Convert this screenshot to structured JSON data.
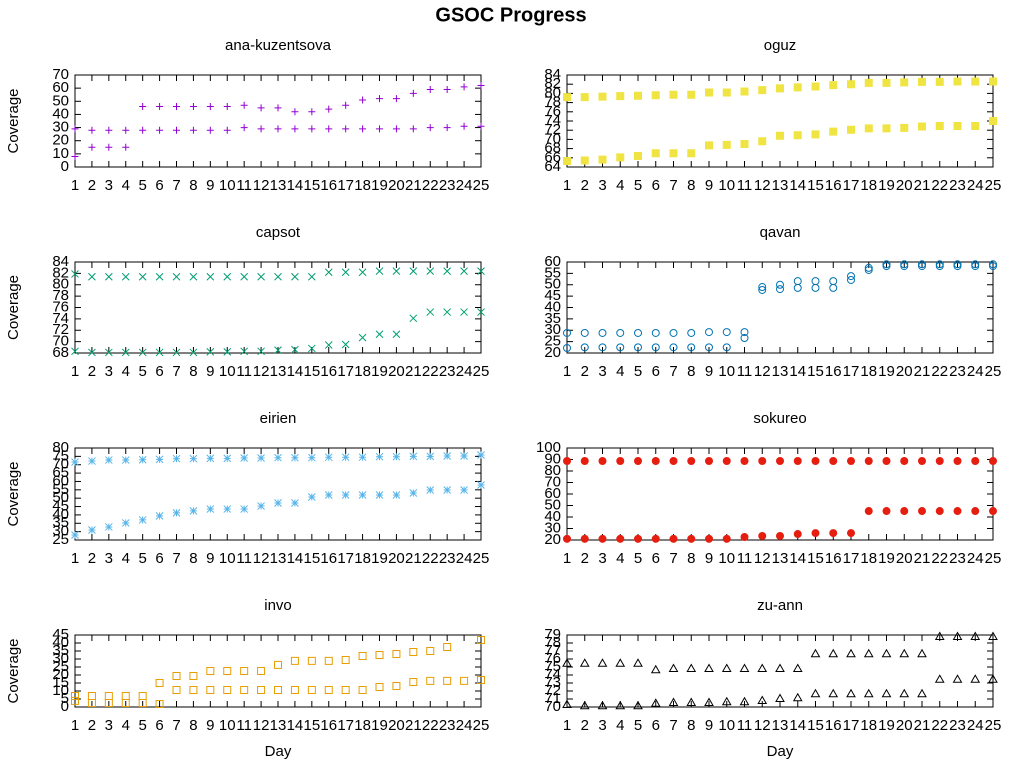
{
  "title": "GSOC Progress",
  "chart_data": [
    {
      "type": "scatter",
      "title": "ana-kuzentsova",
      "ylabel": "Coverage",
      "x": [
        1,
        2,
        3,
        4,
        5,
        6,
        7,
        8,
        9,
        10,
        11,
        12,
        13,
        14,
        15,
        16,
        17,
        18,
        19,
        20,
        21,
        22,
        23,
        24,
        25
      ],
      "xlim": [
        1,
        25
      ],
      "xticks": [
        1,
        2,
        3,
        4,
        5,
        6,
        7,
        8,
        9,
        10,
        11,
        12,
        13,
        14,
        15,
        16,
        17,
        18,
        19,
        20,
        21,
        22,
        23,
        24,
        25
      ],
      "ylim": [
        0,
        70
      ],
      "yticks": [
        0,
        10,
        20,
        30,
        40,
        50,
        60,
        70
      ],
      "series": [
        {
          "color": "#9400d3",
          "marker": "plus",
          "values": [
            29,
            28,
            28,
            28,
            46,
            46,
            46,
            46,
            46,
            46,
            47,
            45,
            45,
            42,
            42,
            44,
            47,
            51,
            52,
            52,
            56,
            59,
            59,
            61,
            62
          ]
        },
        {
          "color": "#9400d3",
          "marker": "plus",
          "values": [
            8,
            15,
            15,
            15,
            28,
            28,
            28,
            28,
            28,
            28,
            30,
            29,
            29,
            29,
            29,
            29,
            29,
            29,
            29,
            29,
            29,
            30,
            30,
            31,
            31
          ]
        }
      ]
    },
    {
      "type": "scatter",
      "title": "oguz",
      "x": [
        1,
        2,
        3,
        4,
        5,
        6,
        7,
        8,
        9,
        10,
        11,
        12,
        13,
        14,
        15,
        16,
        17,
        18,
        19,
        20,
        21,
        22,
        23,
        24,
        25
      ],
      "xlim": [
        1,
        25
      ],
      "xticks": [
        1,
        2,
        3,
        4,
        5,
        6,
        7,
        8,
        9,
        10,
        11,
        12,
        13,
        14,
        15,
        16,
        17,
        18,
        19,
        20,
        21,
        22,
        23,
        24,
        25
      ],
      "ylim": [
        64,
        84
      ],
      "yticks": [
        64,
        66,
        68,
        70,
        72,
        74,
        76,
        78,
        80,
        82,
        84
      ],
      "series": [
        {
          "color": "#f0e442",
          "marker": "square-filled",
          "values": [
            79.2,
            79.2,
            79.3,
            79.4,
            79.5,
            79.6,
            79.7,
            79.7,
            80.2,
            80.2,
            80.4,
            80.7,
            81.1,
            81.3,
            81.5,
            81.8,
            82,
            82.3,
            82.3,
            82.4,
            82.5,
            82.5,
            82.6,
            82.6,
            82.6
          ]
        },
        {
          "color": "#f0e442",
          "marker": "square-filled",
          "values": [
            65.3,
            65.4,
            65.6,
            66.1,
            66.4,
            67,
            67,
            67,
            68.7,
            68.8,
            69,
            69.6,
            70.8,
            70.9,
            71.1,
            71.7,
            72.1,
            72.4,
            72.4,
            72.5,
            72.8,
            72.9,
            72.9,
            72.9,
            74
          ]
        }
      ]
    },
    {
      "type": "scatter",
      "title": "capsot",
      "ylabel": "Coverage",
      "x": [
        1,
        2,
        3,
        4,
        5,
        6,
        7,
        8,
        9,
        10,
        11,
        12,
        13,
        14,
        15,
        16,
        17,
        18,
        19,
        20,
        21,
        22,
        23,
        24,
        25
      ],
      "xlim": [
        1,
        25
      ],
      "xticks": [
        1,
        2,
        3,
        4,
        5,
        6,
        7,
        8,
        9,
        10,
        11,
        12,
        13,
        14,
        15,
        16,
        17,
        18,
        19,
        20,
        21,
        22,
        23,
        24,
        25
      ],
      "ylim": [
        68,
        84
      ],
      "yticks": [
        68,
        70,
        72,
        74,
        76,
        78,
        80,
        82,
        84
      ],
      "series": [
        {
          "color": "#009e73",
          "marker": "cross",
          "values": [
            81.9,
            81.4,
            81.4,
            81.4,
            81.4,
            81.4,
            81.4,
            81.4,
            81.4,
            81.4,
            81.4,
            81.4,
            81.4,
            81.4,
            81.4,
            82.2,
            82.2,
            82.2,
            82.4,
            82.4,
            82.4,
            82.4,
            82.4,
            82.4,
            82.4
          ]
        },
        {
          "color": "#009e73",
          "marker": "cross",
          "values": [
            68.3,
            68.1,
            68.1,
            68.1,
            68.1,
            68.1,
            68.1,
            68.1,
            68.2,
            68.2,
            68.3,
            68.3,
            68.5,
            68.6,
            68.8,
            69.4,
            69.5,
            70.7,
            71.3,
            71.3,
            74.1,
            75.2,
            75.2,
            75.2,
            75.2
          ]
        }
      ]
    },
    {
      "type": "scatter",
      "title": "qavan",
      "x": [
        1,
        2,
        3,
        4,
        5,
        6,
        7,
        8,
        9,
        10,
        11,
        12,
        13,
        14,
        15,
        16,
        17,
        18,
        19,
        20,
        21,
        22,
        23,
        24,
        25
      ],
      "xlim": [
        1,
        25
      ],
      "xticks": [
        1,
        2,
        3,
        4,
        5,
        6,
        7,
        8,
        9,
        10,
        11,
        12,
        13,
        14,
        15,
        16,
        17,
        18,
        19,
        20,
        21,
        22,
        23,
        24,
        25
      ],
      "ylim": [
        20,
        60
      ],
      "yticks": [
        20,
        25,
        30,
        35,
        40,
        45,
        50,
        55,
        60
      ],
      "series": [
        {
          "color": "#0072b2",
          "marker": "circle-open",
          "values": [
            28.8,
            28.8,
            28.8,
            28.8,
            28.8,
            28.8,
            28.8,
            28.8,
            29.2,
            29.2,
            29.2,
            49,
            50,
            51.6,
            51.6,
            51.6,
            53.8,
            57.4,
            59,
            59,
            59,
            59,
            59,
            59,
            59
          ]
        },
        {
          "color": "#0072b2",
          "marker": "circle-open",
          "values": [
            22.2,
            22.5,
            22.5,
            22.5,
            22.5,
            22.5,
            22.5,
            22.5,
            22.5,
            22.5,
            26.6,
            47.7,
            48.1,
            48.6,
            48.6,
            48.6,
            52.1,
            56.5,
            58.2,
            58.2,
            58.2,
            58.2,
            58.2,
            58.2,
            58.2
          ]
        }
      ]
    },
    {
      "type": "scatter",
      "title": "eirien",
      "ylabel": "Coverage",
      "x": [
        1,
        2,
        3,
        4,
        5,
        6,
        7,
        8,
        9,
        10,
        11,
        12,
        13,
        14,
        15,
        16,
        17,
        18,
        19,
        20,
        21,
        22,
        23,
        24,
        25
      ],
      "xlim": [
        1,
        25
      ],
      "xticks": [
        1,
        2,
        3,
        4,
        5,
        6,
        7,
        8,
        9,
        10,
        11,
        12,
        13,
        14,
        15,
        16,
        17,
        18,
        19,
        20,
        21,
        22,
        23,
        24,
        25
      ],
      "ylim": [
        25,
        80
      ],
      "yticks": [
        25,
        30,
        35,
        40,
        45,
        50,
        55,
        60,
        65,
        70,
        75,
        80
      ],
      "series": [
        {
          "color": "#56b4e9",
          "marker": "asterisk",
          "values": [
            71.6,
            72.2,
            72.8,
            72.8,
            73,
            73.2,
            73.6,
            73.6,
            73.8,
            73.8,
            74,
            74,
            74.2,
            74.2,
            74.2,
            74.5,
            74.5,
            74.5,
            74.8,
            74.8,
            75,
            75,
            75.2,
            75.2,
            75.8
          ]
        },
        {
          "color": "#56b4e9",
          "marker": "asterisk",
          "values": [
            28,
            31,
            32.8,
            35.2,
            37,
            39.4,
            41.2,
            42.4,
            43.5,
            43.5,
            43.5,
            45.3,
            47.1,
            47.1,
            50.7,
            51.9,
            51.9,
            51.9,
            51.9,
            51.9,
            53.1,
            54.9,
            54.9,
            54.9,
            57.9
          ]
        }
      ]
    },
    {
      "type": "scatter",
      "title": "sokureo",
      "x": [
        1,
        2,
        3,
        4,
        5,
        6,
        7,
        8,
        9,
        10,
        11,
        12,
        13,
        14,
        15,
        16,
        17,
        18,
        19,
        20,
        21,
        22,
        23,
        24,
        25
      ],
      "xlim": [
        1,
        25
      ],
      "xticks": [
        1,
        2,
        3,
        4,
        5,
        6,
        7,
        8,
        9,
        10,
        11,
        12,
        13,
        14,
        15,
        16,
        17,
        18,
        19,
        20,
        21,
        22,
        23,
        24,
        25
      ],
      "ylim": [
        20,
        100
      ],
      "yticks": [
        20,
        30,
        40,
        50,
        60,
        70,
        80,
        90,
        100
      ],
      "series": [
        {
          "color": "#e51e10",
          "marker": "circle-filled",
          "values": [
            88.7,
            88.7,
            88.7,
            88.7,
            88.7,
            88.7,
            88.7,
            88.7,
            88.7,
            88.7,
            88.7,
            88.7,
            88.7,
            88.7,
            88.7,
            88.7,
            88.7,
            88.7,
            88.7,
            88.7,
            88.7,
            88.7,
            88.7,
            88.7,
            88.7
          ]
        },
        {
          "color": "#e51e10",
          "marker": "circle-filled",
          "values": [
            21,
            21,
            21,
            21,
            21,
            21,
            21,
            21,
            21,
            21,
            22.6,
            23.5,
            23.5,
            25.2,
            26,
            26,
            26,
            45.2,
            45.2,
            45.2,
            45.2,
            45.2,
            45.2,
            45.2,
            45.2
          ]
        }
      ]
    },
    {
      "type": "scatter",
      "title": "invo",
      "ylabel": "Coverage",
      "xlabel": "Day",
      "x": [
        1,
        2,
        3,
        4,
        5,
        6,
        7,
        8,
        9,
        10,
        11,
        12,
        13,
        14,
        15,
        16,
        17,
        18,
        19,
        20,
        21,
        22,
        23,
        24,
        25
      ],
      "xlim": [
        1,
        25
      ],
      "xticks": [
        1,
        2,
        3,
        4,
        5,
        6,
        7,
        8,
        9,
        10,
        11,
        12,
        13,
        14,
        15,
        16,
        17,
        18,
        19,
        20,
        21,
        22,
        23,
        24,
        25
      ],
      "ylim": [
        0,
        45
      ],
      "yticks": [
        0,
        5,
        10,
        15,
        20,
        25,
        30,
        35,
        40,
        45
      ],
      "series": [
        {
          "color": "#e69f00",
          "marker": "square-open",
          "values": [
            6.9,
            6.9,
            6.9,
            6.9,
            6.9,
            15,
            19.4,
            19.4,
            22.5,
            22.5,
            22.5,
            22.5,
            26.3,
            28.8,
            28.8,
            28.8,
            29.4,
            31.9,
            32.5,
            33.1,
            34.4,
            35,
            37.5,
            null,
            41.9
          ]
        },
        {
          "color": "#e69f00",
          "marker": "square-open",
          "values": [
            3.8,
            2.5,
            2.5,
            2.5,
            2.5,
            1.9,
            10.6,
            10.6,
            10.6,
            10.6,
            10.6,
            10.6,
            10.6,
            10.6,
            10.6,
            10.6,
            10.6,
            10.6,
            12.5,
            13.1,
            15.6,
            16.3,
            16.3,
            16.3,
            16.9
          ]
        }
      ]
    },
    {
      "type": "scatter",
      "title": "zu-ann",
      "xlabel": "Day",
      "x": [
        1,
        2,
        3,
        4,
        5,
        6,
        7,
        8,
        9,
        10,
        11,
        12,
        13,
        14,
        15,
        16,
        17,
        18,
        19,
        20,
        21,
        22,
        23,
        24,
        25
      ],
      "xlim": [
        1,
        25
      ],
      "xticks": [
        1,
        2,
        3,
        4,
        5,
        6,
        7,
        8,
        9,
        10,
        11,
        12,
        13,
        14,
        15,
        16,
        17,
        18,
        19,
        20,
        21,
        22,
        23,
        24,
        25
      ],
      "ylim": [
        70,
        79
      ],
      "yticks": [
        70,
        71,
        72,
        73,
        74,
        75,
        76,
        77,
        78,
        79
      ],
      "series": [
        {
          "color": "#000000",
          "marker": "triangle-open",
          "values": [
            75.4,
            75.4,
            75.4,
            75.4,
            75.4,
            74.6,
            74.75,
            74.75,
            74.75,
            74.75,
            74.75,
            74.75,
            74.75,
            74.75,
            76.6,
            76.6,
            76.6,
            76.6,
            76.6,
            76.6,
            76.6,
            78.75,
            78.75,
            78.75,
            78.75
          ]
        },
        {
          "color": "#000000",
          "marker": "triangle-open",
          "values": [
            70.25,
            70.1,
            70.1,
            70.1,
            70.1,
            70.4,
            70.5,
            70.5,
            70.5,
            70.6,
            70.6,
            70.75,
            71,
            71.1,
            71.6,
            71.6,
            71.6,
            71.6,
            71.6,
            71.6,
            71.6,
            73.4,
            73.4,
            73.4,
            73.4
          ]
        }
      ]
    }
  ]
}
